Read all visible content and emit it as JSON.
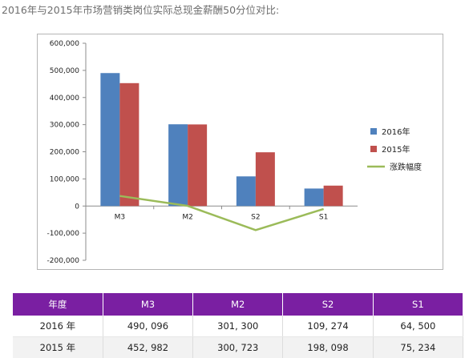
{
  "page_title": "2016年与2015年市场营销类岗位实际总现金薪酬50分位对比:",
  "chart_data": {
    "type": "bar",
    "categories": [
      "M3",
      "M2",
      "S2",
      "S1"
    ],
    "series": [
      {
        "name": "2016年",
        "type": "bar",
        "color": "#4f81bd",
        "values": [
          490096,
          301300,
          109274,
          64500
        ]
      },
      {
        "name": "2015年",
        "type": "bar",
        "color": "#c0504d",
        "values": [
          452982,
          300723,
          198098,
          75234
        ]
      },
      {
        "name": "涨跌幅度",
        "type": "line",
        "color": "#9bbb59",
        "values": [
          37114,
          577,
          -88824,
          -10734
        ]
      }
    ],
    "ylim": [
      -200000,
      600000
    ],
    "yticks": [
      -200000,
      -100000,
      0,
      100000,
      200000,
      300000,
      400000,
      500000,
      600000
    ],
    "ytick_labels": [
      "-200,000",
      "-100,000",
      "0",
      "100,000",
      "200,000",
      "300,000",
      "400,000",
      "500,000",
      "600,000"
    ],
    "grid": false,
    "legend_position": "right"
  },
  "table": {
    "headers": [
      "年度",
      "M3",
      "M2",
      "S2",
      "S1"
    ],
    "rows": [
      [
        "2016 年",
        "490, 096",
        "301, 300",
        "109, 274",
        "64, 500"
      ],
      [
        "2015 年",
        "452, 982",
        "300, 723",
        "198, 098",
        "75, 234"
      ]
    ]
  }
}
